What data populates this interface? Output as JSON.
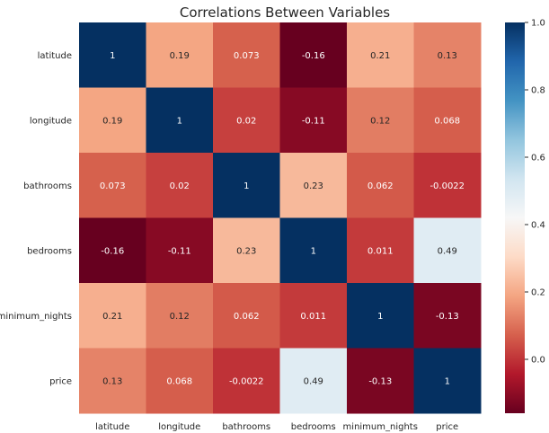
{
  "chart_data": {
    "type": "heatmap",
    "title": "Correlations Between Variables",
    "xlabel": "",
    "ylabel": "",
    "x_categories": [
      "latitude",
      "longitude",
      "bathrooms",
      "bedrooms",
      "minimum_nights",
      "price"
    ],
    "y_categories": [
      "latitude",
      "longitude",
      "bathrooms",
      "bedrooms",
      "minimum_nights",
      "price"
    ],
    "values": [
      [
        1,
        0.19,
        0.073,
        -0.16,
        0.21,
        0.13
      ],
      [
        0.19,
        1,
        0.02,
        -0.11,
        0.12,
        0.068
      ],
      [
        0.073,
        0.02,
        1,
        0.23,
        0.062,
        -0.0022
      ],
      [
        -0.16,
        -0.11,
        0.23,
        1,
        0.011,
        0.49
      ],
      [
        0.21,
        0.12,
        0.062,
        0.011,
        1,
        -0.13
      ],
      [
        0.13,
        0.068,
        -0.0022,
        0.49,
        -0.13,
        1
      ]
    ],
    "labels": [
      [
        "1",
        "0.19",
        "0.073",
        "-0.16",
        "0.21",
        "0.13"
      ],
      [
        "0.19",
        "1",
        "0.02",
        "-0.11",
        "0.12",
        "0.068"
      ],
      [
        "0.073",
        "0.02",
        "1",
        "0.23",
        "0.062",
        "-0.0022"
      ],
      [
        "-0.16",
        "-0.11",
        "0.23",
        "1",
        "0.011",
        "0.49"
      ],
      [
        "0.21",
        "0.12",
        "0.062",
        "0.011",
        "1",
        "-0.13"
      ],
      [
        "0.13",
        "0.068",
        "-0.0022",
        "0.49",
        "-0.13",
        "1"
      ]
    ],
    "colormap": "RdBu",
    "colorbar": {
      "range": [
        -0.16,
        1.0
      ],
      "ticks": [
        0.0,
        0.2,
        0.4,
        0.6,
        0.8,
        1.0
      ],
      "tick_labels": [
        "0.0",
        "0.2",
        "0.4",
        "0.6",
        "0.8",
        "1.0"
      ]
    },
    "grid": false,
    "legend": "colorbar-right"
  }
}
